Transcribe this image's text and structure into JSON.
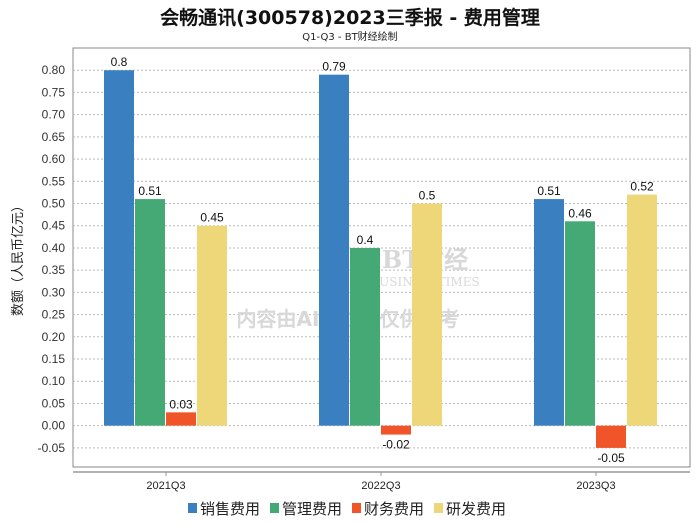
{
  "chart_data": {
    "type": "bar",
    "title": "会畅通讯(300578)2023三季报 - 费用管理",
    "subtitle": "Q1-Q3 - BT财经绘制",
    "xlabel": "",
    "ylabel": "数额（人民币亿元）",
    "categories": [
      "2021Q3",
      "2022Q3",
      "2023Q3"
    ],
    "series": [
      {
        "name": "销售费用",
        "color": "#3a80c0",
        "values": [
          0.8,
          0.79,
          0.51
        ]
      },
      {
        "name": "管理费用",
        "color": "#45a975",
        "values": [
          0.51,
          0.4,
          0.46
        ]
      },
      {
        "name": "财务费用",
        "color": "#ef5528",
        "values": [
          0.03,
          -0.02,
          -0.05
        ]
      },
      {
        "name": "研发费用",
        "color": "#edd778",
        "values": [
          0.45,
          0.5,
          0.52
        ]
      }
    ],
    "ylim": [
      -0.093,
      0.85
    ],
    "yticks": [
      "-0.05",
      "0.00",
      "0.05",
      "0.10",
      "0.15",
      "0.20",
      "0.25",
      "0.30",
      "0.35",
      "0.40",
      "0.45",
      "0.50",
      "0.55",
      "0.60",
      "0.65",
      "0.70",
      "0.75",
      "0.80"
    ],
    "grid": true,
    "legend_position": "bottom"
  },
  "watermark": {
    "logo": "BT财经",
    "logo_sub": "BUSINESSTIMES",
    "notice": "内容由AI生成，仅供参考"
  }
}
